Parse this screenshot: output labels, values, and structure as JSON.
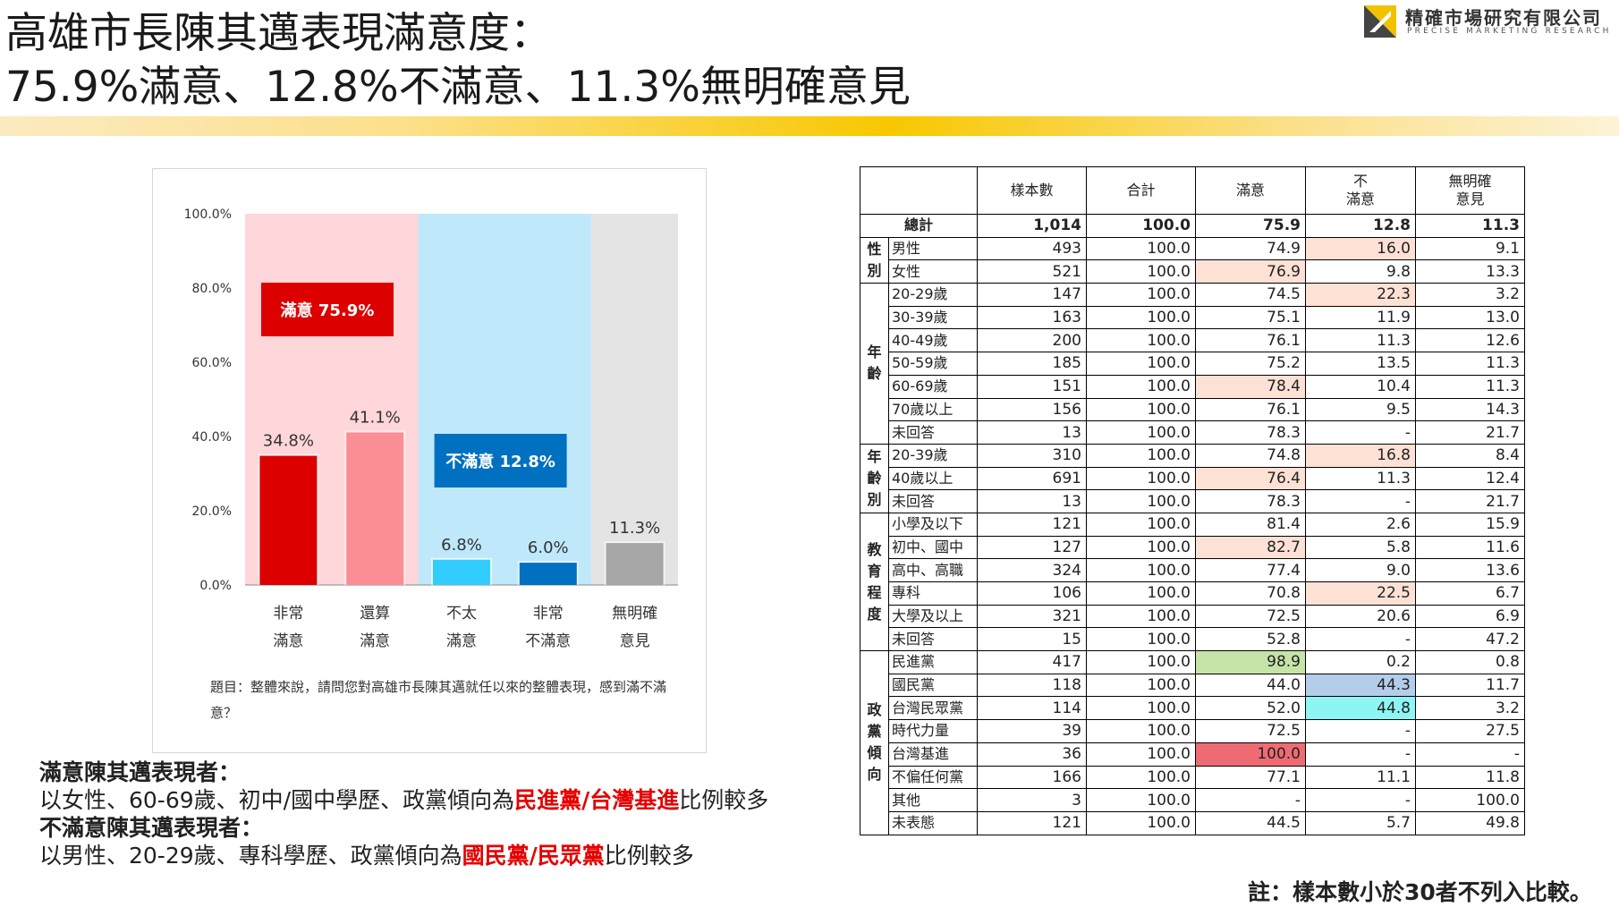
{
  "title_line1": "高雄市長陳其邁表現滿意度：",
  "title_line2": "75.9%滿意、12.8%不滿意、11.3%無明確意見",
  "logo": {
    "name": "精確市場研究有限公司",
    "sub": "PRECISE MARKETING RESEARCH"
  },
  "colors": {
    "gold": "#f7c800",
    "red": "#dd0000",
    "pink": "#fb8d95",
    "lightblue": "#33ccff",
    "blue": "#0070c0",
    "gray": "#a6a6a6",
    "highlight": "#e60000"
  },
  "chart_data": {
    "type": "bar",
    "categories": [
      [
        "非常",
        "滿意"
      ],
      [
        "還算",
        "滿意"
      ],
      [
        "不太",
        "滿意"
      ],
      [
        "非常",
        "不滿意"
      ],
      [
        "無明確",
        "意見"
      ]
    ],
    "values": [
      34.8,
      41.1,
      6.8,
      6.0,
      11.3
    ],
    "value_labels": [
      "34.8%",
      "41.1%",
      "6.8%",
      "6.0%",
      "11.3%"
    ],
    "bar_colors": [
      "#dd0000",
      "#fb8d95",
      "#33ccff",
      "#0070c0",
      "#a6a6a6"
    ],
    "y_ticks": [
      "0.0%",
      "20.0%",
      "40.0%",
      "60.0%",
      "80.0%",
      "100.0%"
    ],
    "ylim": [
      0,
      100
    ],
    "groups": [
      {
        "label": "滿意 75.9%",
        "span": [
          0,
          1
        ],
        "bg": "#ffd6d9",
        "label_bg": "#dd0000"
      },
      {
        "label": "不滿意 12.8%",
        "span": [
          2,
          3
        ],
        "bg": "#bfe9fb",
        "label_bg": "#0070c0"
      },
      {
        "label": "",
        "span": [
          4,
          4
        ],
        "bg": "#e4e4e4",
        "label_bg": ""
      }
    ],
    "grid": false
  },
  "question": "題目：整體來說，請問您對高雄市長陳其邁就任以來的整體表現，感到滿不滿意？",
  "summary": {
    "sat_head": "滿意陳其邁表現者：",
    "sat_pre": "以女性、60-69歲、初中/國中學歷、政黨傾向為",
    "sat_hl": "民進黨/台灣基進",
    "sat_post": "比例較多",
    "dis_head": "不滿意陳其邁表現者：",
    "dis_pre": "以男性、20-29歲、專科學歷、政黨傾向為",
    "dis_hl": "國民黨/民眾黨",
    "dis_post": "比例較多"
  },
  "table": {
    "headers": [
      "樣本數",
      "合計",
      "滿意",
      "不\n滿意",
      "無明確\n意見"
    ],
    "total": {
      "label": "總計",
      "values": [
        "1,014",
        "100.0",
        "75.9",
        "12.8",
        "11.3"
      ]
    },
    "groups": [
      {
        "label": "性\n別",
        "rows": [
          {
            "label": "男性",
            "values": [
              "493",
              "100.0",
              "74.9",
              "16.0",
              "9.1"
            ],
            "hl": {
              "3": "pk"
            }
          },
          {
            "label": "女性",
            "values": [
              "521",
              "100.0",
              "76.9",
              "9.8",
              "13.3"
            ],
            "hl": {
              "2": "pk"
            }
          }
        ]
      },
      {
        "label": "年\n齡",
        "rows": [
          {
            "label": "20-29歲",
            "values": [
              "147",
              "100.0",
              "74.5",
              "22.3",
              "3.2"
            ],
            "hl": {
              "3": "pk"
            }
          },
          {
            "label": "30-39歲",
            "values": [
              "163",
              "100.0",
              "75.1",
              "11.9",
              "13.0"
            ]
          },
          {
            "label": "40-49歲",
            "values": [
              "200",
              "100.0",
              "76.1",
              "11.3",
              "12.6"
            ]
          },
          {
            "label": "50-59歲",
            "values": [
              "185",
              "100.0",
              "75.2",
              "13.5",
              "11.3"
            ]
          },
          {
            "label": "60-69歲",
            "values": [
              "151",
              "100.0",
              "78.4",
              "10.4",
              "11.3"
            ],
            "hl": {
              "2": "pk"
            }
          },
          {
            "label": "70歲以上",
            "values": [
              "156",
              "100.0",
              "76.1",
              "9.5",
              "14.3"
            ]
          },
          {
            "label": "未回答",
            "values": [
              "13",
              "100.0",
              "78.3",
              "-",
              "21.7"
            ]
          }
        ]
      },
      {
        "label": "年\n齡\n別",
        "rows": [
          {
            "label": "20-39歲",
            "values": [
              "310",
              "100.0",
              "74.8",
              "16.8",
              "8.4"
            ],
            "hl": {
              "3": "pk"
            }
          },
          {
            "label": "40歲以上",
            "values": [
              "691",
              "100.0",
              "76.4",
              "11.3",
              "12.4"
            ],
            "hl": {
              "2": "pk"
            }
          },
          {
            "label": "未回答",
            "values": [
              "13",
              "100.0",
              "78.3",
              "-",
              "21.7"
            ]
          }
        ]
      },
      {
        "label": "教\n育\n程\n度",
        "rows": [
          {
            "label": "小學及以下",
            "values": [
              "121",
              "100.0",
              "81.4",
              "2.6",
              "15.9"
            ]
          },
          {
            "label": "初中、國中",
            "values": [
              "127",
              "100.0",
              "82.7",
              "5.8",
              "11.6"
            ],
            "hl": {
              "2": "pk"
            }
          },
          {
            "label": "高中、高職",
            "values": [
              "324",
              "100.0",
              "77.4",
              "9.0",
              "13.6"
            ]
          },
          {
            "label": "專科",
            "values": [
              "106",
              "100.0",
              "70.8",
              "22.5",
              "6.7"
            ],
            "hl": {
              "3": "pk"
            }
          },
          {
            "label": "大學及以上",
            "values": [
              "321",
              "100.0",
              "72.5",
              "20.6",
              "6.9"
            ]
          },
          {
            "label": "未回答",
            "values": [
              "15",
              "100.0",
              "52.8",
              "-",
              "47.2"
            ]
          }
        ]
      },
      {
        "label": "政\n黨\n傾\n向",
        "rows": [
          {
            "label": "民進黨",
            "values": [
              "417",
              "100.0",
              "98.9",
              "0.2",
              "0.8"
            ],
            "hl": {
              "2": "gr"
            }
          },
          {
            "label": "國民黨",
            "values": [
              "118",
              "100.0",
              "44.0",
              "44.3",
              "11.7"
            ],
            "hl": {
              "3": "bl"
            }
          },
          {
            "label": "台灣民眾黨",
            "values": [
              "114",
              "100.0",
              "52.0",
              "44.8",
              "3.2"
            ],
            "hl": {
              "3": "cy"
            }
          },
          {
            "label": "時代力量",
            "values": [
              "39",
              "100.0",
              "72.5",
              "-",
              "27.5"
            ]
          },
          {
            "label": "台灣基進",
            "values": [
              "36",
              "100.0",
              "100.0",
              "-",
              "-"
            ],
            "hl": {
              "2": "rd"
            }
          },
          {
            "label": "不偏任何黨",
            "values": [
              "166",
              "100.0",
              "77.1",
              "11.1",
              "11.8"
            ]
          },
          {
            "label": "其他",
            "values": [
              "3",
              "100.0",
              "-",
              "-",
              "100.0"
            ]
          },
          {
            "label": "未表態",
            "values": [
              "121",
              "100.0",
              "44.5",
              "5.7",
              "49.8"
            ]
          }
        ]
      }
    ]
  },
  "note": "註：樣本數小於30者不列入比較。"
}
